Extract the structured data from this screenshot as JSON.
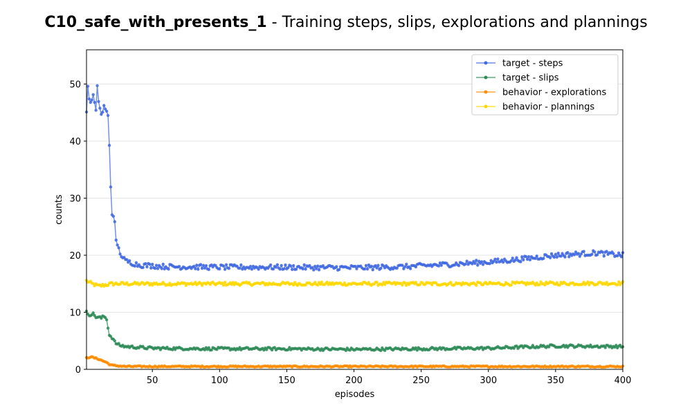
{
  "chart_data": {
    "type": "line",
    "title_bold": "C10_safe_with_presents_1",
    "title_rest": " - Training steps, slips, explorations and plannings",
    "xlabel": "episodes",
    "ylabel": "counts",
    "xlim": [
      1,
      400
    ],
    "ylim": [
      0,
      56
    ],
    "xticks": [
      50,
      100,
      150,
      200,
      250,
      300,
      350,
      400
    ],
    "yticks": [
      0,
      10,
      20,
      30,
      40,
      50
    ],
    "grid": "horizontal",
    "legend_position": "top-right",
    "series": [
      {
        "name": "target - steps",
        "color": "#4169e1",
        "keypoints": [
          [
            1,
            45
          ],
          [
            2,
            50
          ],
          [
            3,
            47
          ],
          [
            5,
            47
          ],
          [
            6,
            48
          ],
          [
            8,
            45
          ],
          [
            9,
            50
          ],
          [
            10,
            47
          ],
          [
            12,
            44.5
          ],
          [
            14,
            46
          ],
          [
            16,
            45
          ],
          [
            17,
            44.5
          ],
          [
            18,
            39.5
          ],
          [
            19,
            32
          ],
          [
            20,
            27.5
          ],
          [
            21,
            26.5
          ],
          [
            22,
            25.5
          ],
          [
            23,
            22.5
          ],
          [
            24,
            22
          ],
          [
            25,
            21
          ],
          [
            26,
            20.5
          ],
          [
            28,
            19.5
          ],
          [
            30,
            19
          ],
          [
            40,
            18.3
          ],
          [
            60,
            18
          ],
          [
            100,
            17.9
          ],
          [
            150,
            17.9
          ],
          [
            200,
            17.8
          ],
          [
            240,
            18
          ],
          [
            270,
            18.4
          ],
          [
            300,
            18.8
          ],
          [
            320,
            19.2
          ],
          [
            350,
            20
          ],
          [
            380,
            20.4
          ],
          [
            400,
            20
          ]
        ],
        "noise": 0.45
      },
      {
        "name": "target - slips",
        "color": "#2e8b57",
        "keypoints": [
          [
            1,
            10
          ],
          [
            3,
            9.6
          ],
          [
            6,
            9.7
          ],
          [
            8,
            9.2
          ],
          [
            12,
            9
          ],
          [
            14,
            9.3
          ],
          [
            16,
            8.8
          ],
          [
            18,
            6
          ],
          [
            20,
            5.6
          ],
          [
            22,
            4.8
          ],
          [
            24,
            4.4
          ],
          [
            26,
            4.2
          ],
          [
            30,
            4
          ],
          [
            50,
            3.7
          ],
          [
            100,
            3.6
          ],
          [
            150,
            3.6
          ],
          [
            200,
            3.5
          ],
          [
            250,
            3.6
          ],
          [
            300,
            3.7
          ],
          [
            350,
            4.1
          ],
          [
            400,
            4
          ]
        ],
        "noise": 0.25
      },
      {
        "name": "behavior - explorations",
        "color": "#ff8c00",
        "keypoints": [
          [
            1,
            2
          ],
          [
            4,
            2.2
          ],
          [
            7,
            2
          ],
          [
            10,
            1.8
          ],
          [
            13,
            1.5
          ],
          [
            16,
            1.2
          ],
          [
            18,
            0.9
          ],
          [
            20,
            0.7
          ],
          [
            25,
            0.6
          ],
          [
            30,
            0.5
          ],
          [
            100,
            0.5
          ],
          [
            200,
            0.5
          ],
          [
            300,
            0.5
          ],
          [
            400,
            0.5
          ]
        ],
        "noise": 0.12
      },
      {
        "name": "behavior - plannings",
        "color": "#ffd700",
        "keypoints": [
          [
            1,
            15.5
          ],
          [
            5,
            15
          ],
          [
            10,
            14.6
          ],
          [
            20,
            15
          ],
          [
            100,
            15
          ],
          [
            200,
            15
          ],
          [
            300,
            15
          ],
          [
            400,
            15.1
          ]
        ],
        "noise": 0.3
      }
    ]
  }
}
